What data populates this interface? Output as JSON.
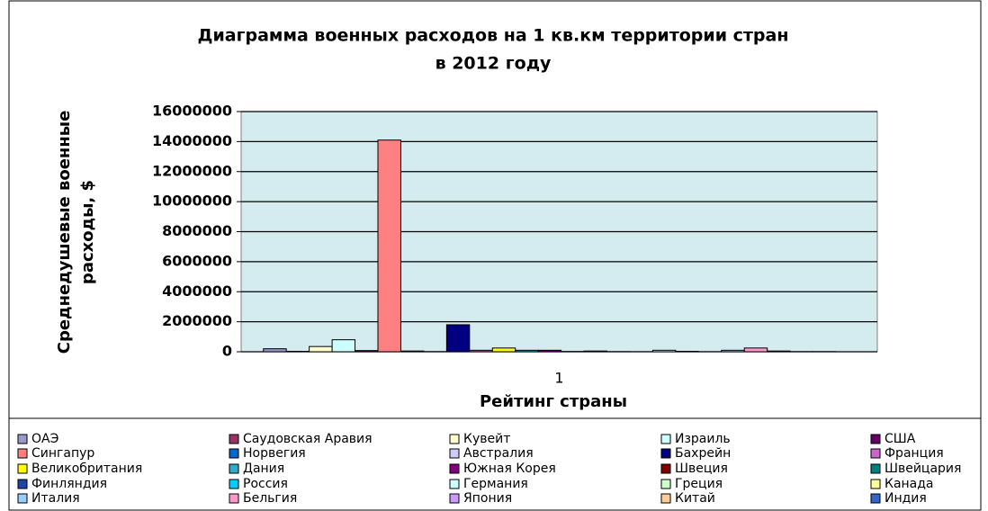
{
  "chart_data": {
    "type": "bar",
    "title": [
      "Диаграмма военных расходов на 1 кв.км территории стран",
      "в 2012 году"
    ],
    "ylabel": [
      "Среднедушевые военные",
      "расходы, $"
    ],
    "xlabel": "Рейтинг страны",
    "categories": [
      "1"
    ],
    "ylim": [
      0,
      16000000
    ],
    "yticks": [
      0,
      2000000,
      4000000,
      6000000,
      8000000,
      10000000,
      12000000,
      14000000,
      16000000
    ],
    "grid": true,
    "legend": "bottom",
    "series": [
      {
        "name": "ОАЭ",
        "color": "#9999cc",
        "values": [
          200000
        ]
      },
      {
        "name": "Саудовская Аравия",
        "color": "#993366",
        "values": [
          30000
        ]
      },
      {
        "name": "Кувейт",
        "color": "#ffffcc",
        "values": [
          350000
        ]
      },
      {
        "name": "Израиль",
        "color": "#ccffff",
        "values": [
          800000
        ]
      },
      {
        "name": "США",
        "color": "#660066",
        "values": [
          80000
        ]
      },
      {
        "name": "Сингапур",
        "color": "#ff8080",
        "values": [
          14100000
        ]
      },
      {
        "name": "Норвегия",
        "color": "#0066cc",
        "values": [
          50000
        ]
      },
      {
        "name": "Австралия",
        "color": "#ccccff",
        "values": [
          10000
        ]
      },
      {
        "name": "Бахрейн",
        "color": "#000080",
        "values": [
          1800000
        ]
      },
      {
        "name": "Франция",
        "color": "#cc66cc",
        "values": [
          100000
        ]
      },
      {
        "name": "Великобритания",
        "color": "#ffff00",
        "values": [
          250000
        ]
      },
      {
        "name": "Дания",
        "color": "#33aacc",
        "values": [
          100000
        ]
      },
      {
        "name": "Южная Корея",
        "color": "#800080",
        "values": [
          100000
        ]
      },
      {
        "name": "Швеция",
        "color": "#800000",
        "values": [
          20000
        ]
      },
      {
        "name": "Швейцария",
        "color": "#008080",
        "values": [
          50000
        ]
      },
      {
        "name": "Финляндия",
        "color": "#2244aa",
        "values": [
          10000
        ]
      },
      {
        "name": "Россия",
        "color": "#00ccff",
        "values": [
          5000
        ]
      },
      {
        "name": "Германия",
        "color": "#ccffff",
        "values": [
          100000
        ]
      },
      {
        "name": "Греция",
        "color": "#ccffcc",
        "values": [
          30000
        ]
      },
      {
        "name": "Канада",
        "color": "#ffff99",
        "values": [
          5000
        ]
      },
      {
        "name": "Италия",
        "color": "#99ccff",
        "values": [
          100000
        ]
      },
      {
        "name": "Бельгия",
        "color": "#ff99cc",
        "values": [
          250000
        ]
      },
      {
        "name": "Япония",
        "color": "#cc99ff",
        "values": [
          50000
        ]
      },
      {
        "name": "Китай",
        "color": "#ffcc99",
        "values": [
          10000
        ]
      },
      {
        "name": "Индия",
        "color": "#3366cc",
        "values": [
          10000
        ]
      }
    ]
  }
}
